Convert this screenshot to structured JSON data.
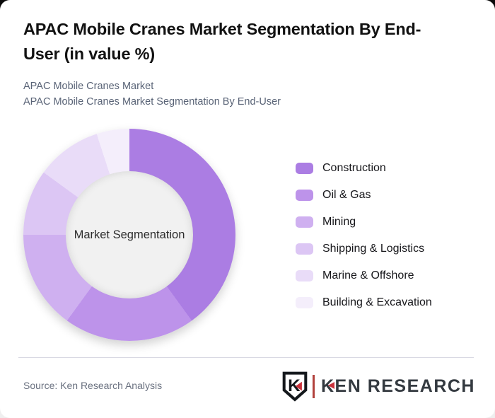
{
  "page": {
    "title": "APAC Mobile Cranes Market Segmentation By End-User (in value %)",
    "subtitle_line1": "APAC Mobile Cranes Market",
    "subtitle_line2": "APAC Mobile Cranes Market Segmentation By End-User",
    "source": "Source: Ken Research Analysis"
  },
  "chart_data": {
    "type": "pie",
    "donut": true,
    "title": "APAC Mobile Cranes Market Segmentation By End-User (in value %)",
    "center_label": "Market Segmentation",
    "categories": [
      "Construction",
      "Oil & Gas",
      "Mining",
      "Shipping & Logistics",
      "Marine & Offshore",
      "Building & Excavation"
    ],
    "values": [
      40,
      20,
      15,
      10,
      10,
      5
    ],
    "unit": "value %",
    "colors": [
      "#ab7de3",
      "#bd93ea",
      "#cfb0f0",
      "#dcc6f4",
      "#e9dcf8",
      "#f4eefb"
    ],
    "legend_position": "right",
    "start_angle_deg": 0,
    "hole_color": "#f1f1f1"
  },
  "logo": {
    "shield_letter": "K",
    "brand_first_letter": "K",
    "brand_rest": "EN RESEARCH",
    "accent_red": "#c9313b",
    "bar_color": "#b2413c",
    "text_color": "#343a40"
  }
}
